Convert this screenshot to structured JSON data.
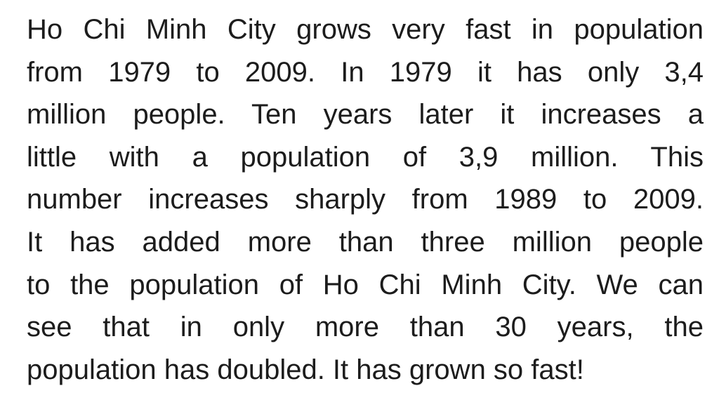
{
  "paragraph": {
    "lines": [
      "Ho Chi Minh City grows very fast in population",
      "from 1979 to 2009. In 1979 it has only 3,4",
      "million people. Ten years later it increases a",
      "little with a population of 3,9 million. This",
      "number increases sharply from 1989 to 2009.",
      "It has added more than three million people",
      "to the population of Ho Chi Minh City. We can",
      "see that in only more than 30 years, the",
      "population has doubled. It has grown so fast!"
    ]
  }
}
